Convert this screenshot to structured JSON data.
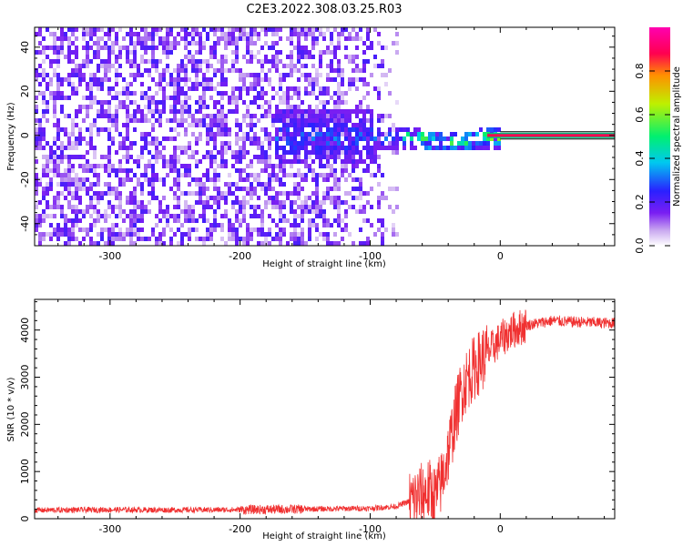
{
  "title": "C2E3.2022.308.03.25.R03",
  "chart_data": [
    {
      "type": "heatmap",
      "xlabel": "Height of straight line (km)",
      "ylabel": "Frequency (Hz)",
      "xlim": [
        -358,
        88
      ],
      "ylim": [
        -50,
        49
      ],
      "xticks": [
        -300,
        -200,
        -100,
        0
      ],
      "yticks": [
        -40,
        -20,
        0,
        20,
        40
      ],
      "colorbar": {
        "label": "Normalized spectral amplitude",
        "range": [
          0,
          1
        ],
        "ticks": [
          0.0,
          0.2,
          0.4,
          0.6,
          0.8
        ],
        "colormap": [
          "#ffffff",
          "#c9a8f0",
          "#7a1ef2",
          "#2a20ff",
          "#00c8f0",
          "#00f070",
          "#bff000",
          "#ff9000",
          "#ff0050",
          "#ff00b0"
        ]
      },
      "description_values": {
        "carrier_frequency_hz": 0,
        "carrier_amplitude_above_0km": 1.0,
        "noise_amplitude_below_minus100km": 0.2
      }
    },
    {
      "type": "line",
      "xlabel": "Height of straight line (km)",
      "ylabel": "SNR (10 * v/v)",
      "xlim": [
        -358,
        88
      ],
      "ylim": [
        0,
        4650
      ],
      "xticks": [
        -300,
        -200,
        -100,
        0
      ],
      "yticks": [
        0,
        1000,
        2000,
        3000,
        4000
      ],
      "color": "#f03030",
      "series": [
        {
          "x": [
            -358,
            -300,
            -250,
            -200,
            -160,
            -130,
            -100,
            -80,
            -65,
            -55,
            -50,
            -45,
            -40,
            -35,
            -30,
            -25,
            -20,
            -15,
            -10,
            -5,
            0,
            5,
            10,
            15,
            20,
            30,
            40,
            50,
            60,
            70,
            80,
            88
          ],
          "y": [
            180,
            190,
            185,
            190,
            200,
            210,
            220,
            260,
            420,
            600,
            450,
            800,
            1400,
            2100,
            2700,
            3000,
            3200,
            3350,
            3500,
            3650,
            3800,
            3900,
            4000,
            4050,
            4100,
            4150,
            4200,
            4180,
            4170,
            4160,
            4150,
            4150
          ]
        }
      ]
    }
  ]
}
